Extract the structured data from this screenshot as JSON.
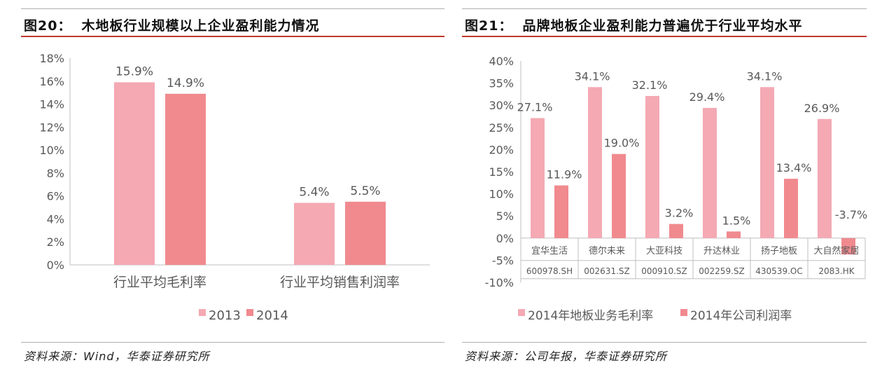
{
  "colors": {
    "c2013": "#f4a9b3",
    "c2014": "#f08a8f",
    "title_rule": "#c0392b"
  },
  "left": {
    "fig_num": "图20：",
    "fig_title": "木地板行业规模以上企业盈利能力情况",
    "source": "资料来源：Wind，华泰证券研究所"
  },
  "right": {
    "fig_num": "图21：",
    "fig_title": "品牌地板企业盈利能力普遍优于行业平均水平",
    "source": "资料来源：公司年报，华泰证券研究所"
  },
  "chart_data": [
    {
      "type": "bar",
      "title": "木地板行业规模以上企业盈利能力情况",
      "categories": [
        "行业平均毛利率",
        "行业平均销售利润率"
      ],
      "series": [
        {
          "name": "2013",
          "values": [
            15.9,
            5.4
          ],
          "labels": [
            "15.9%",
            "5.4%"
          ]
        },
        {
          "name": "2014",
          "values": [
            14.9,
            5.5
          ],
          "labels": [
            "14.9%",
            "5.5%"
          ]
        }
      ],
      "ylim": [
        0,
        18
      ],
      "yticks": [
        0,
        2,
        4,
        6,
        8,
        10,
        12,
        14,
        16,
        18
      ],
      "ytick_labels": [
        "0%",
        "2%",
        "4%",
        "6%",
        "8%",
        "10%",
        "12%",
        "14%",
        "16%",
        "18%"
      ],
      "legend": "bottom"
    },
    {
      "type": "bar",
      "title": "品牌地板企业盈利能力普遍优于行业平均水平",
      "categories": [
        "宜华生活",
        "德尔未来",
        "大亚科技",
        "升达林业",
        "扬子地板",
        "大自然家居"
      ],
      "codes": [
        "600978.SH",
        "002631.SZ",
        "000910.SZ",
        "002259.SZ",
        "430539.OC",
        "2083.HK"
      ],
      "series": [
        {
          "name": "2014年地板业务毛利率",
          "values": [
            27.1,
            34.1,
            32.1,
            29.4,
            34.1,
            26.9
          ],
          "labels": [
            "27.1%",
            "34.1%",
            "32.1%",
            "29.4%",
            "34.1%",
            "26.9%"
          ]
        },
        {
          "name": "2014年公司利润率",
          "values": [
            11.9,
            19.0,
            3.2,
            1.5,
            13.4,
            -3.7
          ],
          "labels": [
            "11.9%",
            "19.0%",
            "3.2%",
            "1.5%",
            "13.4%",
            "-3.7%"
          ]
        }
      ],
      "ylim": [
        -10,
        40
      ],
      "yticks": [
        -10,
        -5,
        0,
        5,
        10,
        15,
        20,
        25,
        30,
        35,
        40
      ],
      "ytick_labels": [
        "-10%",
        "-5%",
        "0%",
        "5%",
        "10%",
        "15%",
        "20%",
        "25%",
        "30%",
        "35%",
        "40%"
      ],
      "legend": "bottom"
    }
  ]
}
